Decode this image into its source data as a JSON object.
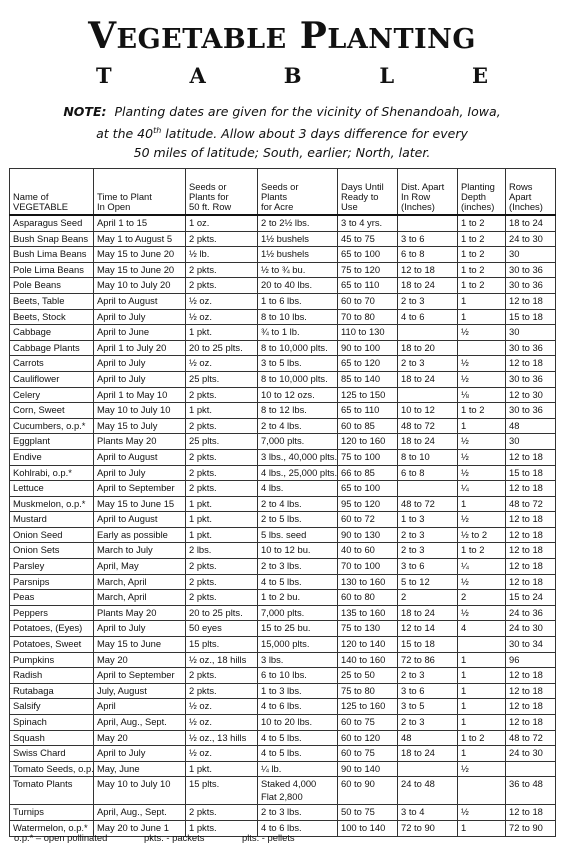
{
  "title": {
    "v": "V",
    "rest1": "EGETABLE",
    "p": "P",
    "rest2": "LANTING"
  },
  "subtitle_letters": [
    "T",
    "A",
    "B",
    "L",
    "E"
  ],
  "note": {
    "label": "NOTE:",
    "line1": "Planting dates are given for the vicinity of Shenandoah, Iowa,",
    "line2a": "at the 40",
    "line2sup": "th",
    "line2b": "latitude.  Allow about 3 days difference for every",
    "line3": "50 miles of latitude; South, earlier; North, later."
  },
  "headers": [
    "Name of\nVEGETABLE",
    "Time to Plant\nIn Open",
    "Seeds or\nPlants for\n50 ft. Row",
    "Seeds or\nPlants\nfor Acre",
    "Days Until\nReady to\nUse",
    "Dist. Apart\nIn Row\n(Inches)",
    "Planting\nDepth\n(inches)",
    "Rows\nApart\n(Inches)"
  ],
  "rows": [
    [
      "Asparagus Seed",
      "April 1 to 15",
      "1 oz.",
      "2 to 2½ lbs.",
      "3 to 4 yrs.",
      "",
      "1 to 2",
      "18 to 24"
    ],
    [
      "Bush Snap Beans",
      "May 1 to August 5",
      "2 pkts.",
      "1½ bushels",
      "45 to 75",
      "3 to 6",
      "1 to 2",
      "24 to 30"
    ],
    [
      "Bush Lima Beans",
      "May 15 to June 20",
      "½ lb.",
      "1½ bushels",
      "65 to 100",
      "6 to 8",
      "1 to 2",
      "30"
    ],
    [
      "Pole Lima Beans",
      "May 15 to June 20",
      "2 pkts.",
      "½ to ¾ bu.",
      "75 to 120",
      "12 to 18",
      "1 to 2",
      "30 to 36"
    ],
    [
      "Pole Beans",
      "May 10 to July 20",
      "2 pkts.",
      "20 to 40 lbs.",
      "65 to 110",
      "18 to 24",
      "1 to 2",
      "30 to 36"
    ],
    [
      "Beets, Table",
      "April to August",
      "½ oz.",
      "1 to 6 lbs.",
      "60 to 70",
      "2 to 3",
      "1",
      "12 to 18"
    ],
    [
      "Beets, Stock",
      "April to July",
      "½ oz.",
      "8 to 10 lbs.",
      "70 to 80",
      "4 to 6",
      "1",
      "15 to 18"
    ],
    [
      "Cabbage",
      "April to June",
      "1 pkt.",
      "¾ to 1 lb.",
      "110 to 130",
      "",
      "½",
      "30"
    ],
    [
      "Cabbage Plants",
      "April 1 to July 20",
      "20 to 25 plts.",
      "8 to 10,000 plts.",
      "90 to 100",
      "18 to 20",
      "",
      "30 to 36"
    ],
    [
      "Carrots",
      "April to July",
      "½ oz.",
      "3 to 5 lbs.",
      "65 to 120",
      "2 to 3",
      "½",
      "12 to 18"
    ],
    [
      "Cauliflower",
      "April to July",
      "25 plts.",
      "8 to 10,000 plts.",
      "85 to 140",
      "18 to 24",
      "½",
      "30 to 36"
    ],
    [
      "Celery",
      "April 1 to May 10",
      "2 pkts.",
      "10 to 12 ozs.",
      "125 to 150",
      "",
      "⅛",
      "12 to 30"
    ],
    [
      "Corn, Sweet",
      "May 10 to July 10",
      "1 pkt.",
      "8 to 12 lbs.",
      "65 to 110",
      "10 to 12",
      "1 to 2",
      "30 to 36"
    ],
    [
      "Cucumbers, o.p.*",
      "May 15 to July",
      "2 pkts.",
      "2 to 4 lbs.",
      "60 to 85",
      "48 to 72",
      "1",
      "48"
    ],
    [
      "Eggplant",
      "Plants May 20",
      "25 plts.",
      "7,000 plts.",
      "120 to 160",
      "18 to 24",
      "½",
      "30"
    ],
    [
      "Endive",
      "April to August",
      "2 pkts.",
      "3 lbs., 40,000 plts.",
      "75 to 100",
      "8 to 10",
      "½",
      "12 to 18"
    ],
    [
      "Kohlrabi, o.p.*",
      "April to July",
      "2 pkts.",
      "4 lbs., 25,000 plts.",
      "66 to 85",
      "6 to 8",
      "½",
      "15 to 18"
    ],
    [
      "Lettuce",
      "April to September",
      "2 pkts.",
      "4 lbs.",
      "65 to 100",
      "",
      "¼",
      "12 to 18"
    ],
    [
      "Muskmelon, o.p.*",
      "May 15 to June 15",
      "1 pkt.",
      "2 to 4 lbs.",
      "95 to 120",
      "48 to 72",
      "1",
      "48 to 72"
    ],
    [
      "Mustard",
      "April to August",
      "1 pkt.",
      "2 to 5 lbs.",
      "60 to 72",
      "1 to 3",
      "½",
      "12 to 18"
    ],
    [
      "Onion Seed",
      "Early as possible",
      "1 pkt.",
      "5 lbs. seed",
      "90 to 130",
      "2 to 3",
      "½ to 2",
      "12 to 18"
    ],
    [
      "Onion Sets",
      "March to July",
      "2 lbs.",
      "10 to 12 bu.",
      "40 to 60",
      "2 to 3",
      "1 to 2",
      "12 to 18"
    ],
    [
      "Parsley",
      "April, May",
      "2 pkts.",
      "2 to 3 lbs.",
      "70 to 100",
      "3 to 6",
      "¼",
      "12 to 18"
    ],
    [
      "Parsnips",
      "March, April",
      "2 pkts.",
      "4 to 5 lbs.",
      "130 to 160",
      "5 to 12",
      "½",
      "12 to 18"
    ],
    [
      "Peas",
      "March, April",
      "2 pkts.",
      "1 to 2 bu.",
      "60 to 80",
      "2",
      "2",
      "15 to 24"
    ],
    [
      "Peppers",
      "Plants May 20",
      "20 to 25 plts.",
      "7,000 plts.",
      "135 to 160",
      "18 to 24",
      "½",
      "24 to 36"
    ],
    [
      "Potatoes, (Eyes)",
      "April to July",
      "50 eyes",
      "15 to 25 bu.",
      "75 to 130",
      "12 to 14",
      "4",
      "24 to 30"
    ],
    [
      "Potatoes, Sweet",
      "May 15 to June",
      "15 plts.",
      "15,000 plts.",
      "120 to 140",
      "15 to 18",
      "",
      "30 to 34"
    ],
    [
      "Pumpkins",
      "May 20",
      "½ oz., 18 hills",
      "3 lbs.",
      "140 to 160",
      "72 to 86",
      "1",
      "96"
    ],
    [
      "Radish",
      "April to September",
      "2 pkts.",
      "6 to 10 lbs.",
      "25 to 50",
      "2 to 3",
      "1",
      "12 to 18"
    ],
    [
      "Rutabaga",
      "July, August",
      "2 pkts.",
      "1 to 3 lbs.",
      "75 to 80",
      "3 to 6",
      "1",
      "12 to 18"
    ],
    [
      "Salsify",
      "April",
      "½ oz.",
      "4 to 6 lbs.",
      "125 to 160",
      "3 to 5",
      "1",
      "12 to 18"
    ],
    [
      "Spinach",
      "April, Aug., Sept.",
      "½ oz.",
      "10 to 20 lbs.",
      "60 to 75",
      "2 to 3",
      "1",
      "12 to 18"
    ],
    [
      "Squash",
      "May 20",
      "½ oz., 13 hills",
      "4 to 5 lbs.",
      "60 to 120",
      "48",
      "1 to 2",
      "48 to 72"
    ],
    [
      "Swiss Chard",
      "April to July",
      "½ oz.",
      "4 to 5 lbs.",
      "60 to 75",
      "18 to 24",
      "1",
      "24 to 30"
    ],
    [
      "Tomato Seeds, o.p.*",
      "May, June",
      "1 pkt.",
      "¼ lb.",
      "90 to 140",
      "",
      "½",
      ""
    ],
    [
      "Tomato Plants",
      "May 10 to July 10",
      "15 plts.",
      "Staked 4,000\nFlat 2,800",
      "60 to 90",
      "24 to 48",
      "",
      "36 to 48"
    ],
    [
      "Turnips",
      "April, Aug., Sept.",
      "2 pkts.",
      "2 to 3 lbs.",
      "50 to 75",
      "3 to 4",
      "½",
      "12 to 18"
    ],
    [
      "Watermelon, o.p.*",
      "May 20 to June 1",
      "1 pkts.",
      "4 to 6 lbs.",
      "100 to 140",
      "72 to 90",
      "1",
      "72 to 90"
    ]
  ],
  "legend": [
    "o.p.* – open pollinated",
    "pkts. - packets",
    "plts. - pellets"
  ]
}
